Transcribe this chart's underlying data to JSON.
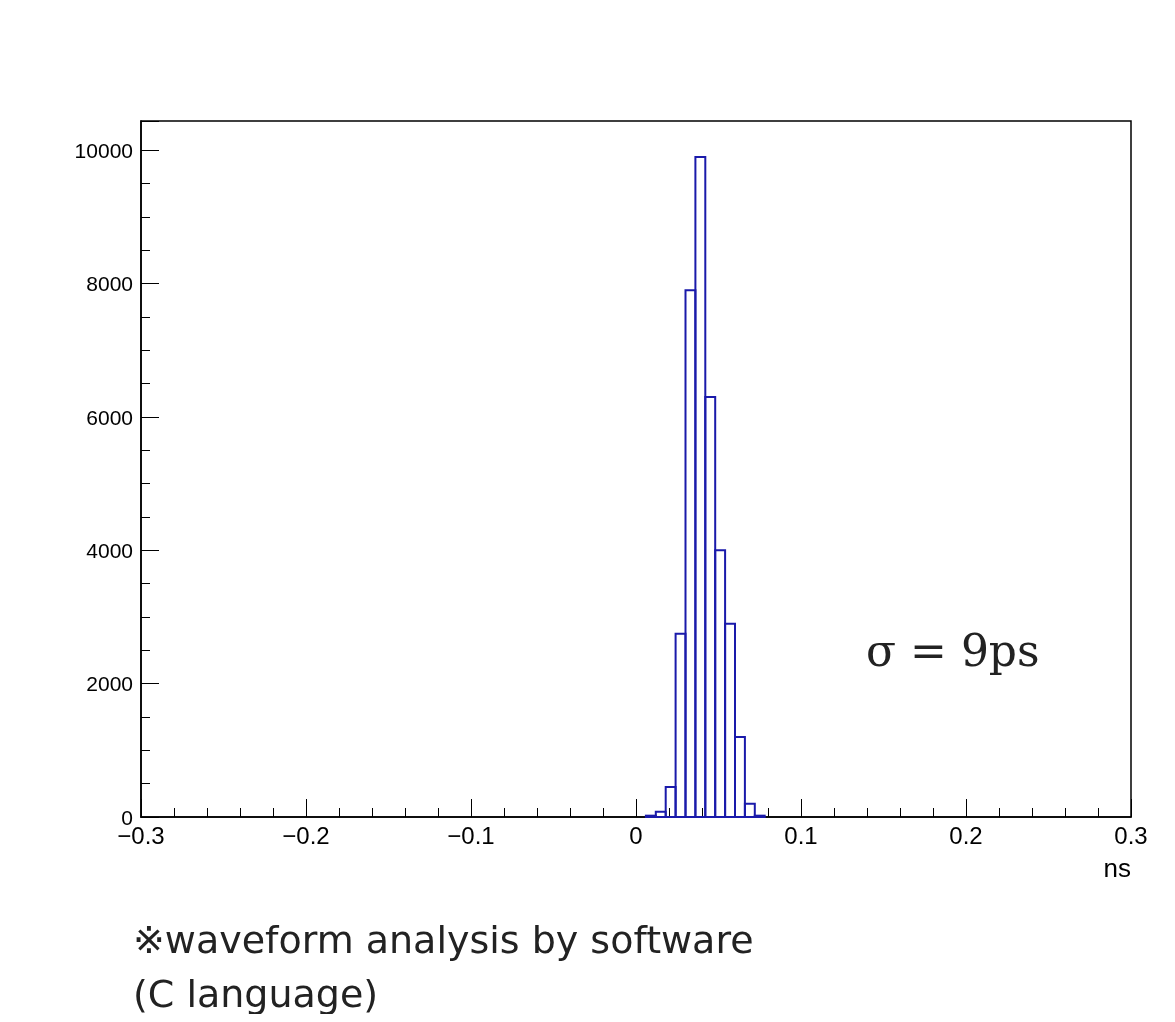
{
  "chart_data": {
    "type": "histogram",
    "xlabel": "ns",
    "color": "#1a1aaa",
    "bins": [
      0.006,
      0.012,
      0.018,
      0.024,
      0.03,
      0.036,
      0.042,
      0.048,
      0.054,
      0.06,
      0.066,
      0.072,
      0.078
    ],
    "values": [
      20,
      80,
      450,
      2750,
      7900,
      9900,
      6300,
      4000,
      2900,
      1200,
      200,
      20
    ],
    "xlim": [
      -0.3,
      0.3
    ],
    "xticks": [
      {
        "value": -0.3,
        "label": "−0.3"
      },
      {
        "value": -0.2,
        "label": "−0.2"
      },
      {
        "value": -0.1,
        "label": "−0.1"
      },
      0,
      0.1,
      0.2,
      0.3
    ],
    "ylim": [
      0,
      10440
    ],
    "yticks": [
      0,
      2000,
      4000,
      6000,
      8000,
      10000
    ],
    "grid": false,
    "annotations": [
      "σ = 9ps",
      "※waveform analysis by software (C language)"
    ]
  }
}
